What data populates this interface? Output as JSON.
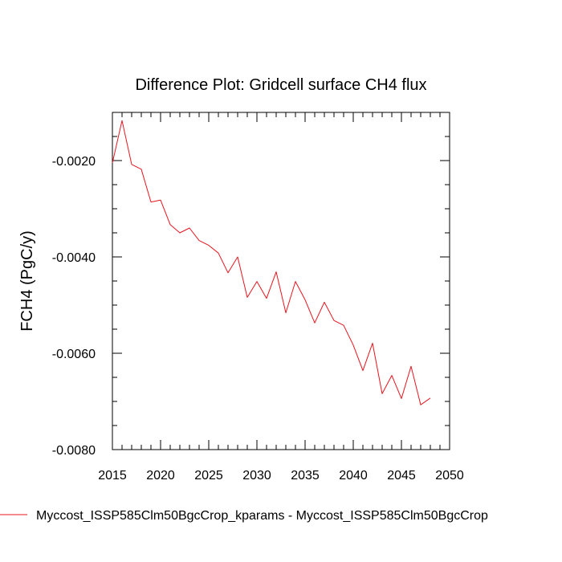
{
  "chart_data": {
    "type": "line",
    "title": "Difference Plot: Gridcell surface CH4 flux",
    "xlabel": "",
    "ylabel": "FCH4  (PgC/y)",
    "xlim": [
      2015,
      2050
    ],
    "ylim": [
      -0.008,
      -0.001
    ],
    "xticks": [
      2015,
      2020,
      2025,
      2030,
      2035,
      2040,
      2045,
      2050
    ],
    "xtick_labels": [
      "2015",
      "2020",
      "2025",
      "2030",
      "2035",
      "2040",
      "2045",
      "2050"
    ],
    "yticks": [
      -0.008,
      -0.006,
      -0.004,
      -0.002
    ],
    "ytick_labels": [
      "-0.0080",
      "-0.0060",
      "-0.0040",
      "-0.0020"
    ],
    "grid": false,
    "legend_position": "bottom",
    "series": [
      {
        "name": "Myccost_ISSP585Clm50BgcCrop_kparams - Myccost_ISSP585Clm50BgcCrop",
        "color": "#e8141e",
        "x": [
          2015,
          2016,
          2017,
          2018,
          2019,
          2020,
          2021,
          2022,
          2023,
          2024,
          2025,
          2026,
          2027,
          2028,
          2029,
          2030,
          2031,
          2032,
          2033,
          2034,
          2035,
          2036,
          2037,
          2038,
          2039,
          2040,
          2041,
          2042,
          2043,
          2044,
          2045,
          2046,
          2047,
          2048
        ],
        "y": [
          -0.00205,
          -0.00117,
          -0.00208,
          -0.00218,
          -0.00286,
          -0.00282,
          -0.00333,
          -0.0035,
          -0.0034,
          -0.00366,
          -0.00376,
          -0.00392,
          -0.00433,
          -0.004,
          -0.00484,
          -0.00451,
          -0.00486,
          -0.00431,
          -0.00516,
          -0.00451,
          -0.00489,
          -0.00537,
          -0.00494,
          -0.00532,
          -0.00542,
          -0.00583,
          -0.00636,
          -0.00579,
          -0.00684,
          -0.00646,
          -0.00694,
          -0.00627,
          -0.00707,
          -0.00693
        ]
      }
    ]
  }
}
